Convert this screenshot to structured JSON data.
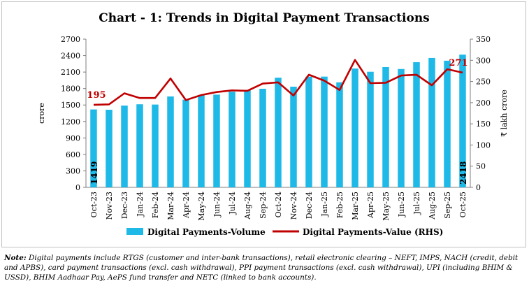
{
  "chart_data": {
    "type": "bar+line",
    "title": "Chart - 1: Trends in Digital Payment Transactions",
    "categories": [
      "Oct-23",
      "Nov-23",
      "Dec-23",
      "Jan-24",
      "Feb-24",
      "Mar-24",
      "Apr-24",
      "May-24",
      "Jun-24",
      "Jul-24",
      "Aug-24",
      "Sep-24",
      "Oct-24",
      "Nov-24",
      "Dec-24",
      "Jan-25",
      "Feb-25",
      "Mar-25",
      "Apr-25",
      "May-25",
      "Jun-25",
      "Jul-25",
      "Aug-25",
      "Sep-25",
      "Oct-25"
    ],
    "series": [
      {
        "name": "Digital Payments-Volume",
        "type": "bar",
        "axis": "left",
        "color": "#1fb9e8",
        "values": [
          1419,
          1414,
          1490,
          1513,
          1508,
          1656,
          1597,
          1674,
          1689,
          1743,
          1776,
          1796,
          1998,
          1834,
          2016,
          2017,
          1913,
          2165,
          2105,
          2191,
          2156,
          2280,
          2357,
          2307,
          2418
        ]
      },
      {
        "name": "Digital Payments-Value (RHS)",
        "type": "line",
        "axis": "right",
        "color": "#c00000",
        "values": [
          195,
          196,
          222,
          211,
          211,
          257,
          206,
          218,
          225,
          229,
          228,
          245,
          248,
          217,
          266,
          252,
          230,
          301,
          246,
          247,
          264,
          266,
          241,
          279,
          271
        ]
      }
    ],
    "left_axis": {
      "label": "crore",
      "min": 0,
      "max": 2700,
      "ticks": [
        0,
        300,
        600,
        900,
        1200,
        1500,
        1800,
        2100,
        2400,
        2700
      ]
    },
    "right_axis": {
      "label": "₹ lakh crore",
      "min": 0,
      "max": 350,
      "ticks": [
        0,
        50,
        100,
        150,
        200,
        250,
        300,
        350
      ]
    },
    "data_labels": [
      {
        "series": 0,
        "index": 0,
        "text": "1419"
      },
      {
        "series": 0,
        "index": 24,
        "text": "2418"
      },
      {
        "series": 1,
        "index": 0,
        "text": "195"
      },
      {
        "series": 1,
        "index": 24,
        "text": "271"
      }
    ],
    "legend": "bottom",
    "grid": false
  },
  "note": {
    "label": "Note:",
    "text": "Digital payments include RTGS (customer and inter-bank transactions), retail electronic clearing – NEFT, IMPS, NACH (credit, debit and APBS), card payment transactions (excl. cash withdrawal), PPI payment transactions (excl. cash withdrawal), UPI (including BHIM & USSD), BHIM Aadhaar Pay, AePS fund transfer and NETC (linked to bank accounts)."
  }
}
